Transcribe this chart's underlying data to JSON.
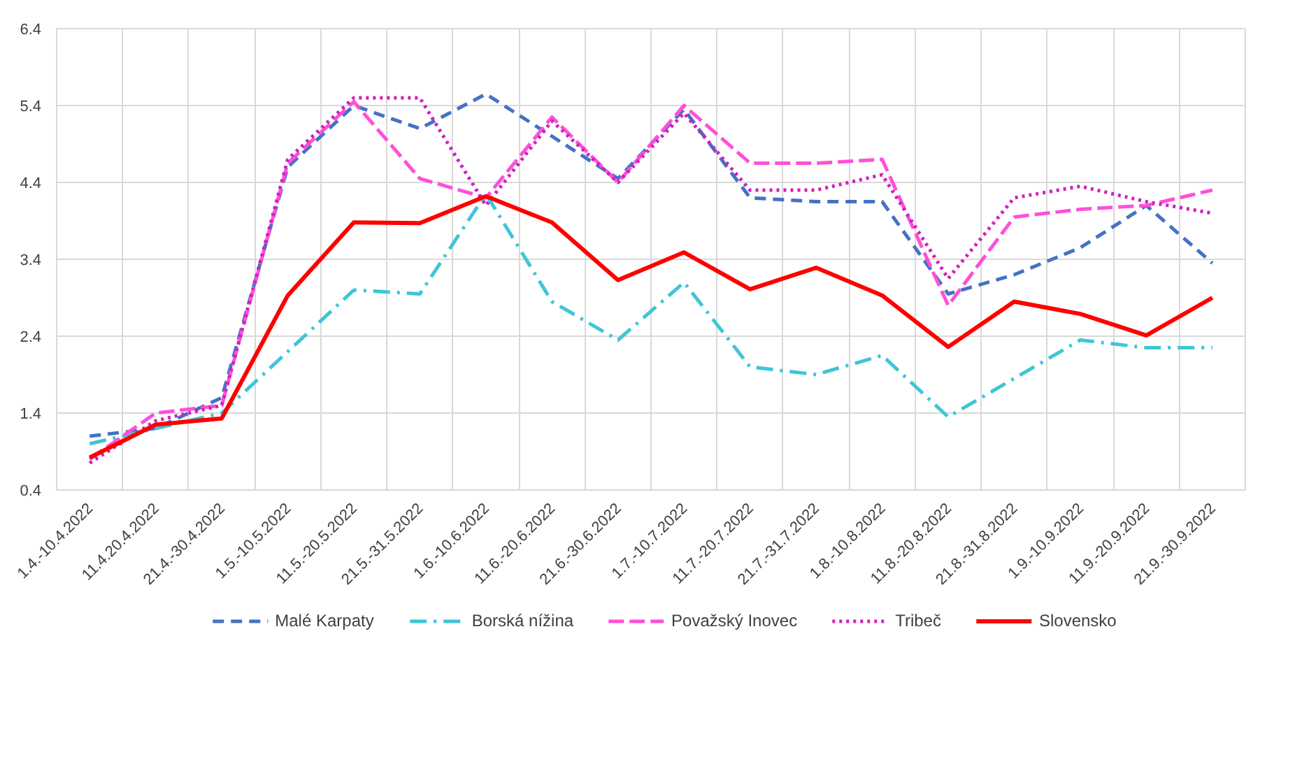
{
  "chart_data": {
    "type": "line",
    "categories": [
      "1.4.-10.4.2022",
      "11.4.20.4.2022",
      "21.4.-30.4.2022",
      "1.5.-10.5.2022",
      "11.5.-20.5.2022",
      "21.5.-31.5.2022",
      "1.6.-10.6.2022",
      "11.6.-20.6.2022",
      "21.6.-30.6.2022",
      "1.7.-10.7.2022",
      "11.7.-20.7.2022",
      "21.7.-31.7.2022",
      "1.8.-10.8.2022",
      "11.8.-20.8.2022",
      "21.8.-31.8.2022",
      "1.9.-10.9.2022",
      "11.9.-20.9.2022",
      "21.9.-30.9.2022"
    ],
    "series": [
      {
        "name": "Malé Karpaty",
        "color": "#4472c4",
        "line_style": "dashed",
        "values": [
          1.1,
          1.2,
          1.6,
          4.6,
          5.4,
          5.1,
          5.55,
          5.0,
          4.45,
          5.35,
          4.2,
          4.15,
          4.15,
          2.95,
          3.2,
          3.55,
          4.1,
          3.35
        ]
      },
      {
        "name": "Borská nížina",
        "color": "#3ec6d6",
        "line_style": "dashdot",
        "values": [
          1.0,
          1.2,
          1.4,
          2.2,
          3.0,
          2.95,
          4.25,
          2.85,
          2.35,
          3.1,
          2.0,
          1.9,
          2.15,
          1.35,
          1.85,
          2.35,
          2.25,
          2.25
        ]
      },
      {
        "name": "Považský Inovec",
        "color": "#ff4fd8",
        "line_style": "longdash",
        "values": [
          0.8,
          1.4,
          1.5,
          4.65,
          5.45,
          4.45,
          4.2,
          5.25,
          4.4,
          5.4,
          4.65,
          4.65,
          4.7,
          2.8,
          3.95,
          4.05,
          4.1,
          4.3
        ]
      },
      {
        "name": "Tribeč",
        "color": "#d020c0",
        "line_style": "dotted",
        "values": [
          0.75,
          1.3,
          1.5,
          4.7,
          5.5,
          5.5,
          4.1,
          5.2,
          4.4,
          5.3,
          4.3,
          4.3,
          4.5,
          3.15,
          4.2,
          4.35,
          4.15,
          4.0
        ]
      },
      {
        "name": "Slovensko",
        "color": "#ff0000",
        "line_style": "solid",
        "values": [
          0.82,
          1.25,
          1.33,
          2.93,
          3.88,
          3.87,
          4.22,
          3.88,
          3.13,
          3.49,
          3.01,
          3.29,
          2.93,
          2.26,
          2.85,
          2.69,
          2.41,
          2.9
        ]
      }
    ],
    "ylim": [
      0.4,
      6.4
    ],
    "yticks": [
      0.4,
      1.4,
      2.4,
      3.4,
      4.4,
      5.4,
      6.4
    ],
    "grid": true,
    "legend": "bottom"
  }
}
